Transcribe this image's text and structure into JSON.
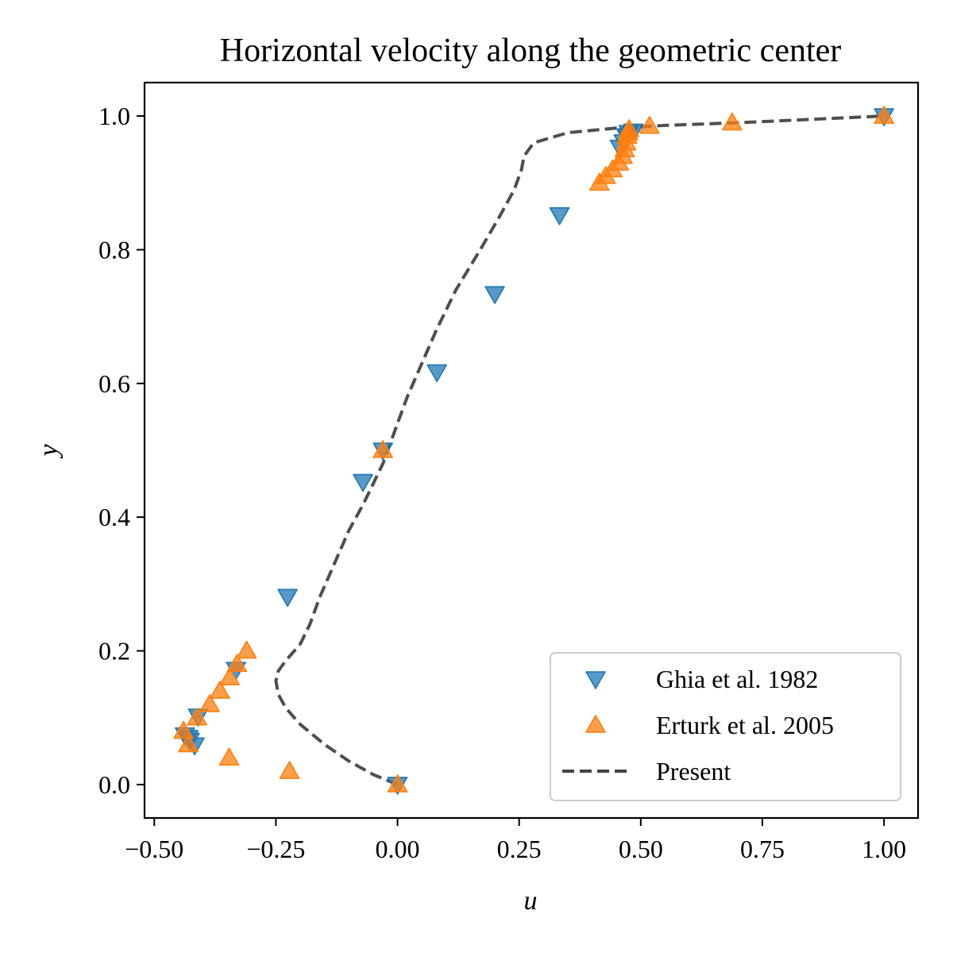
{
  "chart_data": {
    "type": "scatter",
    "title": "Horizontal velocity along the geometric center",
    "xlabel": "u",
    "ylabel": "y",
    "xlim": [
      -0.52,
      1.07
    ],
    "ylim": [
      -0.05,
      1.05
    ],
    "x_ticks": [
      -0.5,
      -0.25,
      0.0,
      0.25,
      0.5,
      0.75,
      1.0
    ],
    "x_tick_labels": [
      "−0.50",
      "−0.25",
      "0.00",
      "0.25",
      "0.50",
      "0.75",
      "1.00"
    ],
    "y_ticks": [
      0.0,
      0.2,
      0.4,
      0.6,
      0.8,
      1.0
    ],
    "y_tick_labels": [
      "0.0",
      "0.2",
      "0.4",
      "0.6",
      "0.8",
      "1.0"
    ],
    "grid": false,
    "legend_position": "bottom-right",
    "series": [
      {
        "name": "Ghia et al. 1982",
        "kind": "scatter",
        "marker": "triangle-down",
        "color": "#1f77b4",
        "x": [
          0.0,
          -0.417,
          -0.427,
          -0.43,
          -0.437,
          -0.41,
          -0.332,
          -0.226,
          -0.071,
          -0.03,
          0.081,
          0.2,
          0.333,
          0.457,
          0.465,
          0.471,
          0.472,
          0.475,
          0.485,
          1.0
        ],
        "y": [
          0.0,
          0.059,
          0.066,
          0.07,
          0.074,
          0.102,
          0.172,
          0.281,
          0.453,
          0.5,
          0.617,
          0.734,
          0.852,
          0.953,
          0.961,
          0.969,
          0.97,
          0.975,
          0.977,
          1.0
        ]
      },
      {
        "name": "Erturk et al. 2005",
        "kind": "scatter",
        "marker": "triangle-up",
        "color": "#ff7f0e",
        "x": [
          0.0,
          -0.222,
          -0.346,
          -0.43,
          -0.44,
          -0.412,
          -0.386,
          -0.365,
          -0.345,
          -0.33,
          -0.31,
          -0.03,
          0.415,
          0.428,
          0.442,
          0.455,
          0.463,
          0.467,
          0.47,
          0.472,
          0.474,
          0.476,
          0.518,
          0.688,
          1.0
        ],
        "y": [
          0.0,
          0.02,
          0.04,
          0.06,
          0.08,
          0.1,
          0.12,
          0.14,
          0.16,
          0.18,
          0.2,
          0.5,
          0.9,
          0.91,
          0.92,
          0.93,
          0.94,
          0.95,
          0.96,
          0.97,
          0.975,
          0.98,
          0.985,
          0.99,
          1.0
        ]
      },
      {
        "name": "Present",
        "kind": "line",
        "style": "dashed",
        "color": "#444444",
        "x": [
          0.0,
          -0.05,
          -0.1,
          -0.15,
          -0.2,
          -0.23,
          -0.245,
          -0.25,
          -0.245,
          -0.23,
          -0.2,
          -0.18,
          -0.16,
          -0.13,
          -0.1,
          -0.07,
          -0.05,
          -0.03,
          -0.02,
          0.0,
          0.02,
          0.05,
          0.08,
          0.12,
          0.17,
          0.21,
          0.24,
          0.255,
          0.26,
          0.28,
          0.35,
          0.45,
          0.55,
          0.7,
          0.85,
          1.0
        ],
        "y": [
          0.0,
          0.015,
          0.035,
          0.06,
          0.09,
          0.115,
          0.135,
          0.155,
          0.17,
          0.185,
          0.21,
          0.24,
          0.28,
          0.33,
          0.38,
          0.42,
          0.45,
          0.48,
          0.5,
          0.54,
          0.58,
          0.63,
          0.68,
          0.74,
          0.8,
          0.85,
          0.89,
          0.92,
          0.94,
          0.96,
          0.975,
          0.982,
          0.986,
          0.99,
          0.995,
          1.0
        ]
      }
    ]
  }
}
